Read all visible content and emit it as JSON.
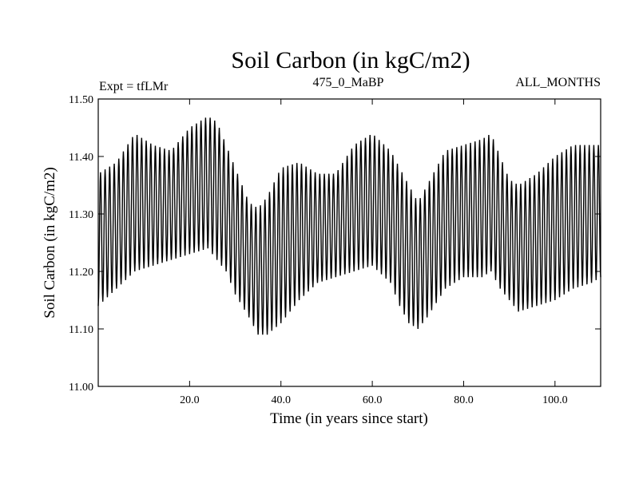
{
  "chart_data": {
    "type": "line",
    "title": "Soil Carbon (in kgC/m2)",
    "subtitle_left": "Expt = tfLMr",
    "subtitle_center": "475_0_MaBP",
    "subtitle_right": "ALL_MONTHS",
    "xlabel": "Time (in years since start)",
    "ylabel": "Soil Carbon (in kgC/m2)",
    "xlim": [
      0,
      110
    ],
    "ylim": [
      11.0,
      11.5
    ],
    "x_ticks": [
      {
        "value": 20,
        "label": "20.0"
      },
      {
        "value": 40,
        "label": "40.0"
      },
      {
        "value": 60,
        "label": "60.0"
      },
      {
        "value": 80,
        "label": "80.0"
      },
      {
        "value": 100,
        "label": "100.0"
      }
    ],
    "y_ticks": [
      {
        "value": 11.0,
        "label": "11.00"
      },
      {
        "value": 11.1,
        "label": "11.10"
      },
      {
        "value": 11.2,
        "label": "11.20"
      },
      {
        "value": 11.3,
        "label": "11.30"
      },
      {
        "value": 11.4,
        "label": "11.40"
      },
      {
        "value": 11.5,
        "label": "11.50"
      }
    ],
    "seasonal_cycle": {
      "period_years": 1,
      "samples_per_year": 12
    },
    "series": [
      {
        "name": "Soil Carbon",
        "color": "#000000",
        "envelope_years": [
          0,
          4,
          8,
          12,
          16,
          20,
          24,
          26,
          28,
          30,
          33,
          35,
          37,
          40,
          44,
          48,
          52,
          56,
          60,
          64,
          66,
          68,
          70,
          72,
          76,
          80,
          84,
          86,
          88,
          90,
          92,
          96,
          100,
          104,
          108,
          110
        ],
        "annual_max": [
          11.37,
          11.39,
          11.44,
          11.42,
          11.41,
          11.45,
          11.47,
          11.46,
          11.42,
          11.38,
          11.32,
          11.31,
          11.33,
          11.38,
          11.39,
          11.37,
          11.37,
          11.42,
          11.44,
          11.41,
          11.38,
          11.35,
          11.32,
          11.35,
          11.41,
          11.42,
          11.43,
          11.44,
          11.4,
          11.36,
          11.35,
          11.37,
          11.4,
          11.42,
          11.42,
          11.42
        ],
        "annual_min": [
          11.14,
          11.17,
          11.2,
          11.21,
          11.22,
          11.23,
          11.24,
          11.22,
          11.2,
          11.16,
          11.12,
          11.09,
          11.09,
          11.11,
          11.15,
          11.18,
          11.19,
          11.2,
          11.21,
          11.18,
          11.14,
          11.11,
          11.1,
          11.12,
          11.17,
          11.19,
          11.19,
          11.2,
          11.17,
          11.15,
          11.13,
          11.14,
          11.15,
          11.17,
          11.18,
          11.19
        ]
      }
    ]
  }
}
